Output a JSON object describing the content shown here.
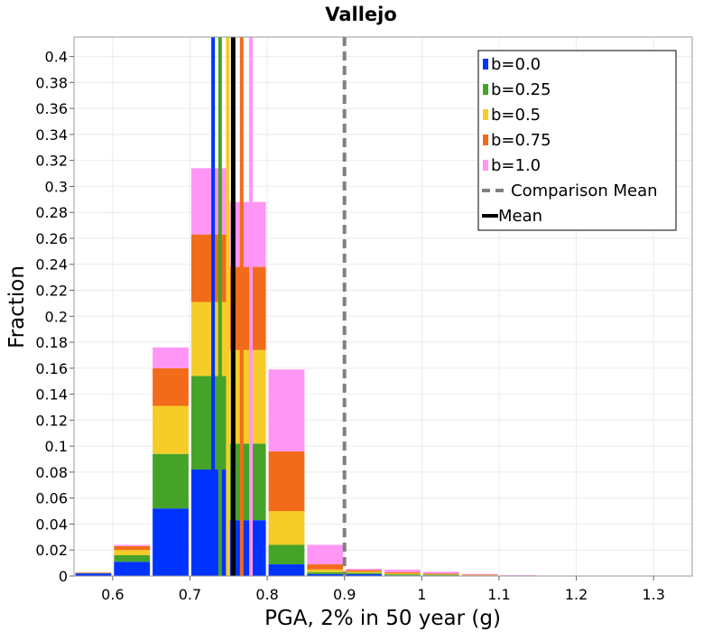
{
  "chart_data": {
    "type": "bar",
    "stacked": true,
    "title": "Vallejo",
    "xlabel": "PGA, 2% in 50 year (g)",
    "ylabel": "Fraction",
    "xlim": [
      0.55,
      1.35
    ],
    "ylim": [
      0,
      0.415
    ],
    "grid": true,
    "bin_width": 0.05,
    "bin_centers": [
      0.575,
      0.625,
      0.675,
      0.725,
      0.775,
      0.825,
      0.875,
      0.925,
      0.975,
      1.025,
      1.075,
      1.125
    ],
    "x_ticks": [
      "0.6",
      "0.7",
      "0.8",
      "0.9",
      "1",
      "1.1",
      "1.2",
      "1.3"
    ],
    "x_tick_values": [
      0.6,
      0.7,
      0.8,
      0.9,
      1.0,
      1.1,
      1.2,
      1.3
    ],
    "y_ticks": [
      "0",
      "0.02",
      "0.04",
      "0.06",
      "0.08",
      "0.1",
      "0.12",
      "0.14",
      "0.16",
      "0.18",
      "0.2",
      "0.22",
      "0.24",
      "0.26",
      "0.28",
      "0.3",
      "0.32",
      "0.34",
      "0.36",
      "0.38",
      "0.4"
    ],
    "y_tick_values": [
      0,
      0.02,
      0.04,
      0.06,
      0.08,
      0.1,
      0.12,
      0.14,
      0.16,
      0.18,
      0.2,
      0.22,
      0.24,
      0.26,
      0.28,
      0.3,
      0.32,
      0.34,
      0.36,
      0.38,
      0.4
    ],
    "series": [
      {
        "name": "b=0.0",
        "color": "#0033ff",
        "values": [
          0.002,
          0.011,
          0.052,
          0.082,
          0.043,
          0.009,
          0.0015,
          0.0015,
          0.0005,
          0.0005,
          0.0002,
          0.0001
        ]
      },
      {
        "name": "b=0.25",
        "color": "#46a329",
        "values": [
          0.0003,
          0.005,
          0.042,
          0.072,
          0.059,
          0.015,
          0.0015,
          0.001,
          0.0008,
          0.0005,
          0.0002,
          0.0001
        ]
      },
      {
        "name": "b=0.5",
        "color": "#f5cc28",
        "values": [
          0.0002,
          0.004,
          0.037,
          0.057,
          0.072,
          0.026,
          0.002,
          0.001,
          0.0007,
          0.0004,
          0.0002,
          0.0001
        ]
      },
      {
        "name": "b=0.75",
        "color": "#f26b1a",
        "values": [
          0.0003,
          0.003,
          0.029,
          0.052,
          0.064,
          0.046,
          0.004,
          0.001,
          0.001,
          0.0006,
          0.0004,
          0.0001
        ]
      },
      {
        "name": "b=1.0",
        "color": "#ff96f5",
        "values": [
          0.0002,
          0.001,
          0.016,
          0.051,
          0.05,
          0.063,
          0.015,
          0.001,
          0.002,
          0.0012,
          0.0006,
          0.0003
        ]
      }
    ],
    "series_mean_lines": [
      0.73,
      0.739,
      0.749,
      0.767,
      0.779
    ],
    "mean_line": {
      "name": "Mean",
      "value": 0.756,
      "color": "#000000"
    },
    "comparison_mean_line": {
      "name": "Comparison Mean",
      "value": 0.9,
      "color": "#808080"
    },
    "legend": {
      "placement": "top-right",
      "entries": [
        "b=0.0",
        "b=0.25",
        "b=0.5",
        "b=0.75",
        "b=1.0",
        "Comparison Mean",
        "Mean"
      ]
    }
  }
}
